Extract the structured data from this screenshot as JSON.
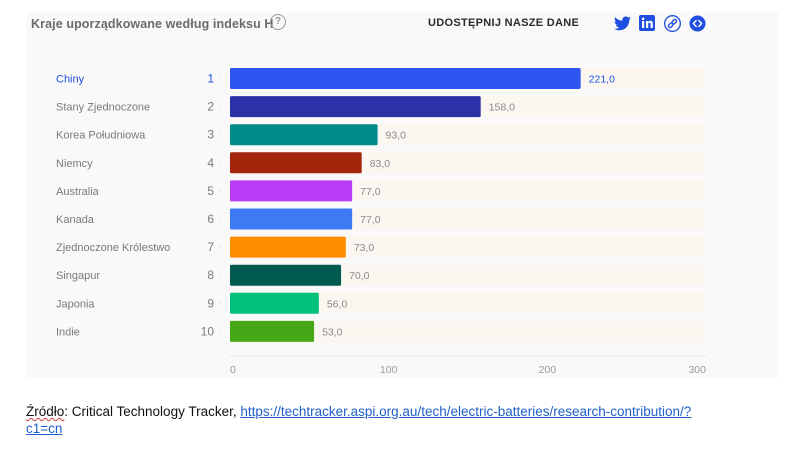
{
  "header": {
    "title": "Kraje uporządkowane według indeksu H",
    "help_icon": "question-circle-icon",
    "share_label": "UDOSTĘPNIJ NASZE DANE",
    "share_icons": [
      "twitter-icon",
      "linkedin-icon",
      "link-icon",
      "embed-code-icon"
    ],
    "share_icon_color": "#1f4fe0"
  },
  "colors": {
    "background": "#f9f9f9",
    "track": "#fbf7f0",
    "highlight_text": "#1f4fe0",
    "label_text": "#7a7a7a"
  },
  "chart_data": {
    "type": "bar",
    "orientation": "horizontal",
    "title": "Kraje uporządkowane według indeksu H",
    "categories": [
      "Chiny",
      "Stany Zjednoczone",
      "Korea Południowa",
      "Niemcy",
      "Australia",
      "Kanada",
      "Zjednoczone Królestwo",
      "Singapur",
      "Japonia",
      "Indie"
    ],
    "ranks": [
      "1",
      "2",
      "3",
      "4",
      "5",
      "6",
      "7",
      "8",
      "9",
      "10"
    ],
    "values": [
      221.0,
      158.0,
      93.0,
      83.0,
      77.0,
      77.0,
      73.0,
      70.0,
      56.0,
      53.0
    ],
    "value_labels": [
      "221,0",
      "158,0",
      "93,0",
      "83,0",
      "77,0",
      "77,0",
      "73,0",
      "70,0",
      "56,0",
      "53,0"
    ],
    "bar_colors": [
      "#2f55f0",
      "#2b31a6",
      "#008b8b",
      "#a3260c",
      "#b83cf7",
      "#3d7bf5",
      "#ff8d00",
      "#00594f",
      "#00c07a",
      "#47a817"
    ],
    "xlim": [
      0,
      300
    ],
    "xticks": [
      0,
      100,
      200,
      300
    ],
    "xtick_labels": [
      "0",
      "100",
      "200",
      "300"
    ],
    "highlighted_category": "Chiny",
    "grid": false,
    "legend": "none"
  },
  "source": {
    "label": "Źródło",
    "text": ": Critical Technology Tracker, ",
    "link": "https://techtracker.aspi.org.au/tech/electric-batteries/research-contribution/?c1=cn"
  }
}
